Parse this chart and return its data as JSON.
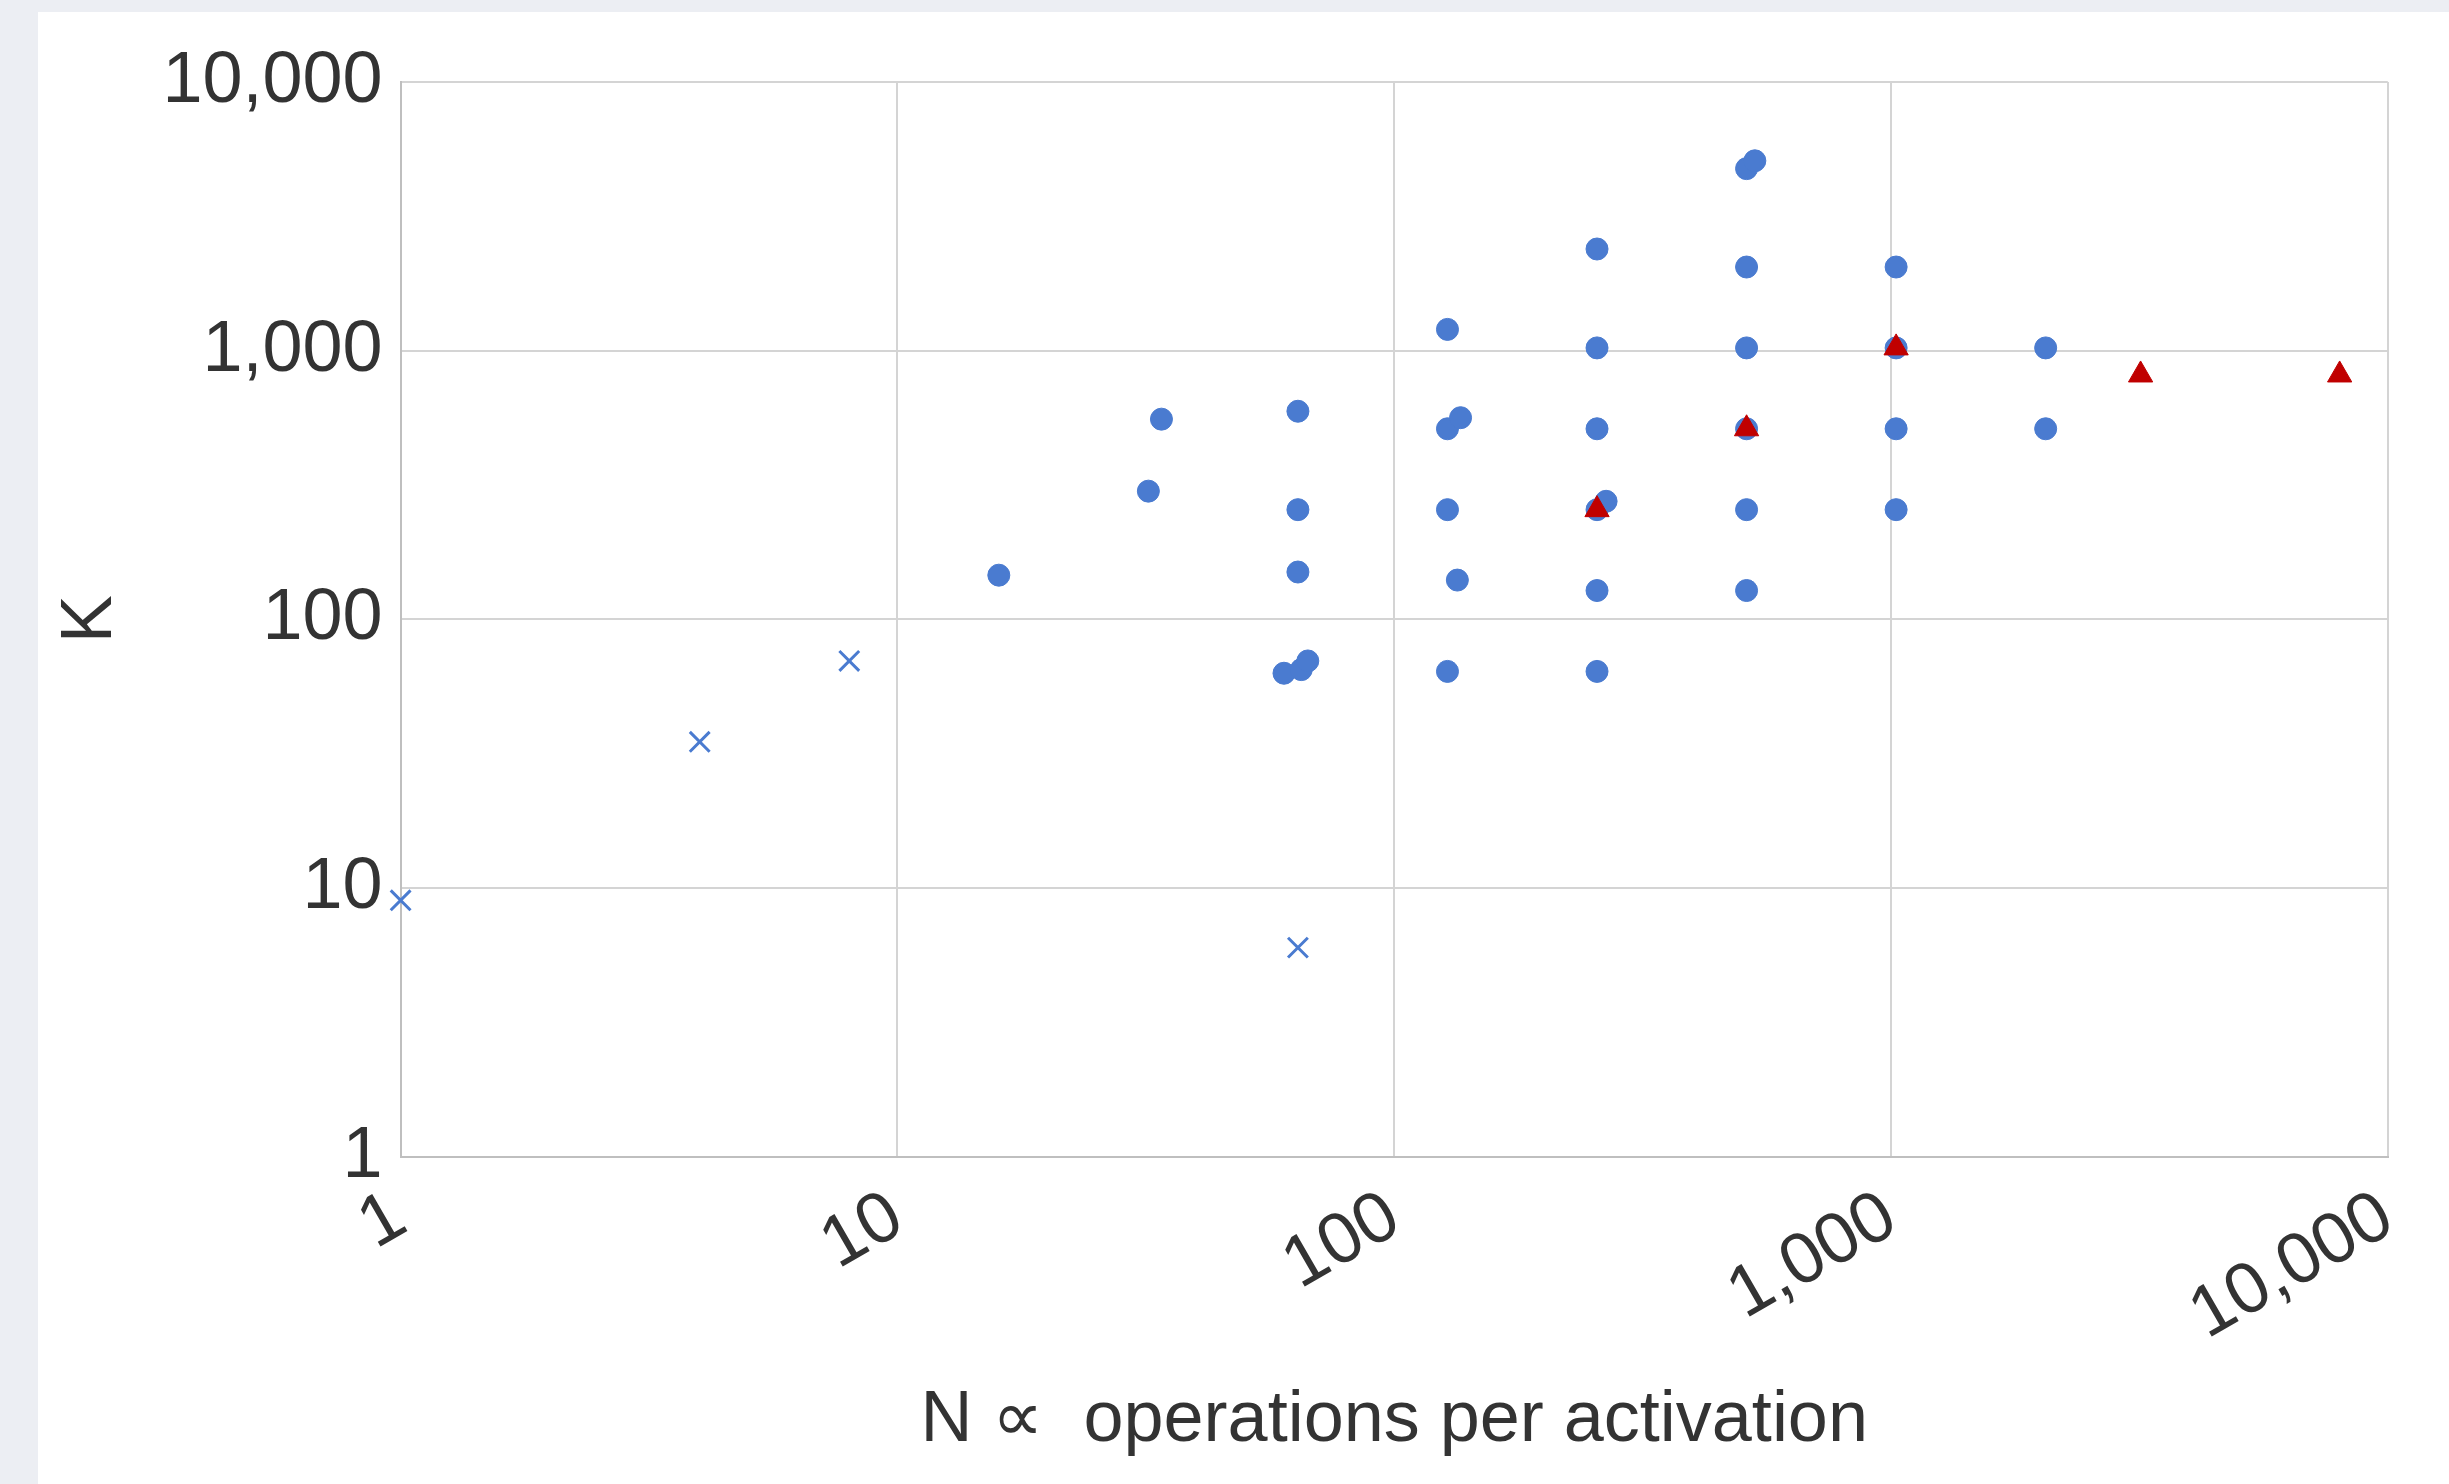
{
  "chart_data": {
    "type": "scatter",
    "xlabel": "N ∝  operations per activation",
    "ylabel": "K",
    "log": "xy",
    "grid": true,
    "legend": false,
    "xlim": [
      1,
      10000
    ],
    "ylim": [
      1,
      10000
    ],
    "xticks": [
      1,
      10,
      100,
      {
        "value": 1000,
        "label": "1,000"
      },
      {
        "value": 10000,
        "label": "10,000"
      }
    ],
    "yticks": [
      1,
      10,
      100,
      {
        "value": 1000,
        "label": "1,000"
      },
      {
        "value": 10000,
        "label": "10,000"
      }
    ],
    "series": [
      {
        "color": "#4a7bd0",
        "marker": "cross",
        "x": [
          1,
          4,
          8,
          64
        ],
        "values": [
          9,
          35,
          70,
          6
        ]
      },
      {
        "color": "#4a7bd0",
        "marker": "circle",
        "x": [
          16,
          32,
          34,
          64,
          64,
          64,
          60,
          65,
          67,
          128,
          128,
          136,
          128,
          134,
          128,
          256,
          256,
          256,
          256,
          267,
          256,
          256,
          512,
          532,
          512,
          512,
          512,
          512,
          512,
          1024,
          1024,
          1024,
          1024,
          2048,
          2048
        ],
        "values": [
          146,
          300,
          556,
          595,
          256,
          150,
          63,
          65,
          70,
          1200,
          512,
          563,
          256,
          140,
          64,
          2390,
          1024,
          512,
          256,
          275,
          128,
          64,
          4760,
          5090,
          2048,
          1024,
          512,
          256,
          128,
          2048,
          1024,
          512,
          256,
          1024,
          512
        ]
      },
      {
        "color": "#c00000",
        "marker": "triangle",
        "x": [
          256,
          512,
          1024,
          3180,
          8000
        ],
        "values": [
          256,
          512,
          1024,
          812,
          812
        ]
      }
    ]
  }
}
